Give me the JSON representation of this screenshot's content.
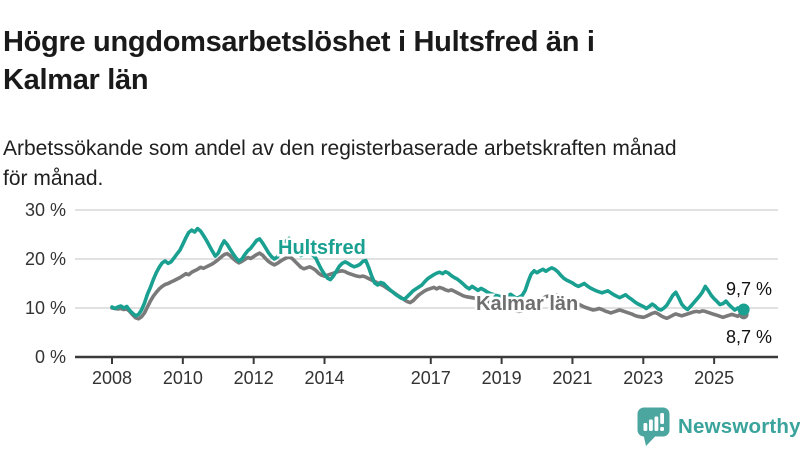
{
  "header": {
    "title_lines": [
      "Högre ungdomsarbetslöshet i Hultsfred än i",
      "Kalmar län"
    ],
    "subtitle_lines": [
      "Arbetssökande som andel av den registerbaserade arbetskraften månad",
      "för månad."
    ]
  },
  "logo": {
    "brand": "Newsworthy"
  },
  "colors": {
    "line_teal": "#19a091",
    "line_gray": "#7a7a7a",
    "label_gray": "#6f6f6f",
    "grid": "#cfcfcf",
    "axis": "#3a3a3a",
    "text_dark": "#1a1a1a",
    "logo_teal": "#4ba6a0",
    "logo_text_teal": "#3aa39b"
  },
  "chart_data": {
    "type": "line",
    "title": "Högre ungdomsarbetslöshet i Hultsfred än i Kalmar län",
    "subtitle": "Arbetssökande som andel av den registerbaserade arbetskraften månad för månad.",
    "unit": "%",
    "grid": true,
    "legend_position": "inline-labels",
    "x_axis": {
      "range": [
        2008,
        2026.8
      ],
      "ticks": [
        2008,
        2010,
        2012,
        2014,
        2017,
        2019,
        2021,
        2023,
        2025
      ],
      "tick_labels": [
        "2008",
        "2010",
        "2012",
        "2014",
        "2017",
        "2019",
        "2021",
        "2023",
        "2025"
      ]
    },
    "y_axis": {
      "range": [
        0,
        30
      ],
      "ticks": [
        0,
        10,
        20,
        30
      ],
      "tick_labels": [
        "0 %",
        "10 %",
        "20 %",
        "30 %"
      ]
    },
    "series": [
      {
        "name": "Hultsfred",
        "color": "#19a091",
        "label_color": "#19a091",
        "end_label": "9,7 %",
        "end_value": 9.7,
        "start_year": 2008,
        "points_per_year": 12,
        "values": [
          10.2,
          9.9,
          10.2,
          10.4,
          10.0,
          10.3,
          9.5,
          8.9,
          8.4,
          8.7,
          9.6,
          11.0,
          12.8,
          14.2,
          15.8,
          17.2,
          18.3,
          19.2,
          19.6,
          19.1,
          19.4,
          20.2,
          21.0,
          21.8,
          23.0,
          24.3,
          25.4,
          25.9,
          25.5,
          26.2,
          25.7,
          24.8,
          23.8,
          22.7,
          21.6,
          20.6,
          21.2,
          22.6,
          23.7,
          23.0,
          22.0,
          21.1,
          20.2,
          19.6,
          20.0,
          20.9,
          21.7,
          22.2,
          23.0,
          23.8,
          24.1,
          23.3,
          22.3,
          21.3,
          20.5,
          20.0,
          20.4,
          21.2,
          22.5,
          23.7,
          24.2,
          23.5,
          22.4,
          21.4,
          20.7,
          20.9,
          21.1,
          21.3,
          20.8,
          20.2,
          19.0,
          17.8,
          16.9,
          16.1,
          15.8,
          16.5,
          17.5,
          18.5,
          19.1,
          19.4,
          19.1,
          18.7,
          18.4,
          18.6,
          18.9,
          19.5,
          19.7,
          18.2,
          16.5,
          15.1,
          14.7,
          15.2,
          15.0,
          14.4,
          13.8,
          13.3,
          12.8,
          12.4,
          12.0,
          11.8,
          12.3,
          12.9,
          13.5,
          13.9,
          14.3,
          14.7,
          15.4,
          16.0,
          16.4,
          16.8,
          17.1,
          17.3,
          17.0,
          17.4,
          17.1,
          16.6,
          16.2,
          15.9,
          15.4,
          14.9,
          14.3,
          13.9,
          14.4,
          14.0,
          13.6,
          14.0,
          13.7,
          13.3,
          13.0,
          12.8,
          12.6,
          12.4,
          12.3,
          12.1,
          12.4,
          12.8,
          12.4,
          12.0,
          12.2,
          12.6,
          13.6,
          15.4,
          16.9,
          17.6,
          17.2,
          17.6,
          17.9,
          17.5,
          17.9,
          18.2,
          17.9,
          17.4,
          16.7,
          16.1,
          15.7,
          15.4,
          15.1,
          14.7,
          14.4,
          14.7,
          15.0,
          14.5,
          14.1,
          13.8,
          13.5,
          13.3,
          13.1,
          13.3,
          13.5,
          13.1,
          12.7,
          12.4,
          12.1,
          12.4,
          12.7,
          12.2,
          11.8,
          11.3,
          10.9,
          10.6,
          10.3,
          9.9,
          10.3,
          10.8,
          10.4,
          9.8,
          9.6,
          10.0,
          10.6,
          11.6,
          12.6,
          13.2,
          12.1,
          10.8,
          10.1,
          9.7,
          10.3,
          11.0,
          11.7,
          12.4,
          13.2,
          14.4,
          13.6,
          12.6,
          11.9,
          11.3,
          10.7,
          10.9,
          11.4,
          10.7,
          10.1,
          9.6,
          10.0,
          9.4,
          9.7
        ]
      },
      {
        "name": "Kalmar län",
        "color": "#7a7a7a",
        "label_color": "#6f6f6f",
        "end_label": "8,7 %",
        "end_value": 8.7,
        "start_year": 2008,
        "points_per_year": 12,
        "values": [
          10.0,
          9.9,
          9.8,
          9.9,
          9.7,
          9.8,
          9.3,
          8.6,
          8.0,
          7.8,
          8.2,
          9.0,
          10.2,
          11.4,
          12.4,
          13.2,
          13.9,
          14.4,
          14.8,
          15.0,
          15.3,
          15.6,
          15.9,
          16.2,
          16.6,
          17.0,
          16.8,
          17.3,
          17.6,
          17.9,
          18.3,
          18.1,
          18.4,
          18.7,
          19.0,
          19.4,
          19.9,
          20.4,
          20.9,
          21.1,
          20.7,
          20.1,
          19.6,
          19.2,
          19.5,
          19.9,
          20.3,
          20.1,
          20.5,
          20.9,
          21.2,
          20.8,
          20.1,
          19.5,
          19.1,
          18.8,
          19.1,
          19.5,
          19.9,
          20.2,
          20.5,
          20.1,
          19.5,
          18.9,
          18.3,
          18.0,
          18.2,
          18.4,
          18.1,
          17.7,
          17.1,
          16.7,
          16.5,
          16.7,
          16.9,
          17.1,
          17.3,
          17.5,
          17.6,
          17.4,
          17.1,
          16.9,
          16.7,
          16.5,
          16.4,
          16.5,
          16.3,
          16.0,
          15.7,
          15.4,
          15.1,
          14.8,
          14.5,
          14.1,
          13.7,
          13.3,
          12.9,
          12.5,
          12.1,
          11.7,
          11.3,
          11.1,
          11.5,
          12.1,
          12.7,
          13.1,
          13.5,
          13.8,
          14.0,
          14.2,
          13.9,
          14.2,
          14.0,
          13.7,
          13.5,
          13.7,
          13.4,
          13.1,
          12.8,
          12.5,
          12.3,
          12.2,
          12.1,
          12.0,
          11.8,
          11.6,
          11.5,
          11.3,
          11.1,
          10.9,
          10.7,
          10.5,
          10.3,
          10.1,
          9.9,
          9.7,
          9.5,
          9.4,
          9.3,
          9.4,
          9.6,
          9.9,
          10.3,
          10.8,
          11.2,
          11.6,
          12.0,
          12.3,
          12.5,
          12.7,
          12.8,
          12.6,
          12.4,
          12.2,
          11.9,
          11.7,
          11.4,
          11.1,
          10.8,
          10.5,
          10.2,
          10.0,
          9.8,
          9.6,
          9.7,
          9.9,
          9.7,
          9.4,
          9.2,
          9.0,
          9.2,
          9.4,
          9.6,
          9.4,
          9.2,
          9.0,
          8.8,
          8.5,
          8.3,
          8.2,
          8.1,
          8.3,
          8.6,
          8.9,
          9.1,
          8.8,
          8.4,
          8.1,
          7.9,
          8.2,
          8.5,
          8.8,
          8.6,
          8.4,
          8.6,
          8.8,
          9.0,
          9.2,
          9.3,
          9.2,
          9.4,
          9.3,
          9.1,
          8.9,
          8.7,
          8.5,
          8.3,
          8.1,
          8.3,
          8.5,
          8.7,
          8.5,
          8.3,
          8.8,
          8.7
        ]
      }
    ]
  }
}
